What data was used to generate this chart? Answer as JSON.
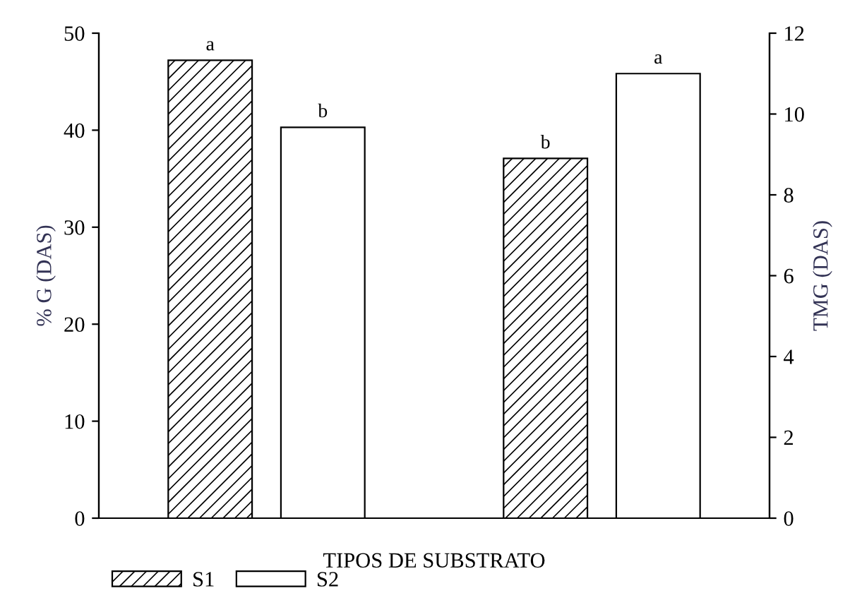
{
  "chart_data": {
    "type": "bar",
    "xlabel": "TIPOS DE SUBSTRATO",
    "ylabel": "% G (DAS)",
    "y2label": "TMG (DAS)",
    "categories": [
      null,
      null
    ],
    "series": [
      {
        "name": "S1",
        "color": "#000000",
        "values": [
          47.2,
          null
        ],
        "value_labels": [
          "a",
          null
        ]
      },
      {
        "name": "S2",
        "color": "#ffffff",
        "values": [
          40.3,
          null
        ],
        "value_labels": [
          "b",
          null
        ]
      },
      {
        "color": "#000000",
        "axis": "y2",
        "values": [
          null,
          8.9
        ],
        "value_labels": [
          null,
          "b"
        ]
      },
      {
        "color": "#ffffff",
        "axis": "y2",
        "values": [
          null,
          11.0
        ],
        "value_labels": [
          null,
          "a"
        ]
      }
    ],
    "ylim": [
      0,
      50
    ],
    "yticks": [
      0,
      10,
      20,
      30,
      40,
      50
    ],
    "y2lim": [
      0,
      12
    ],
    "y2ticks": [
      0,
      2,
      4,
      6,
      8,
      10,
      12
    ],
    "grid": false,
    "legend": "bottom left"
  }
}
